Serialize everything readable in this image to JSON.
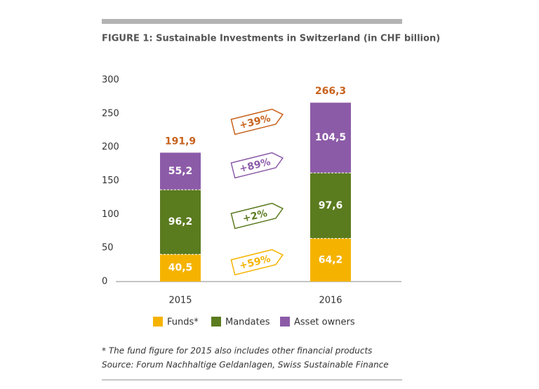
{
  "chart_data": {
    "type": "stacked_bar",
    "title": "FIGURE 1: Sustainable Investments in Switzerland (in CHF billion)",
    "categories": [
      "2015",
      "2016"
    ],
    "series": [
      {
        "name": "Funds*",
        "color": "#f5b300",
        "values": [
          40.5,
          64.2
        ],
        "value_labels": [
          "40,5",
          "64,2"
        ]
      },
      {
        "name": "Mandates",
        "color": "#5b7b1f",
        "values": [
          96.2,
          97.6
        ],
        "value_labels": [
          "96,2",
          "97,6"
        ]
      },
      {
        "name": "Asset owners",
        "color": "#8c5ba8",
        "values": [
          55.2,
          104.5
        ],
        "value_labels": [
          "55,2",
          "104,5"
        ]
      }
    ],
    "totals": {
      "values": [
        191.9,
        266.3
      ],
      "value_labels": [
        "191,9",
        "266,3"
      ],
      "color": "#c8621c"
    },
    "annotations": [
      {
        "text": "+39%",
        "color": "#c8621c"
      },
      {
        "text": "+89%",
        "color": "#8c5ba8"
      },
      {
        "text": "+2%",
        "color": "#5b7b1f"
      },
      {
        "text": "+59%",
        "color": "#f5b300"
      }
    ],
    "ylim": [
      0,
      300
    ],
    "yticks": [
      0,
      50,
      100,
      150,
      200,
      250,
      300
    ],
    "footnotes": [
      "* The fund figure for 2015 also includes other financial products",
      "Source: Forum Nachhaltige Geldanlagen, Swiss Sustainable Finance"
    ]
  }
}
